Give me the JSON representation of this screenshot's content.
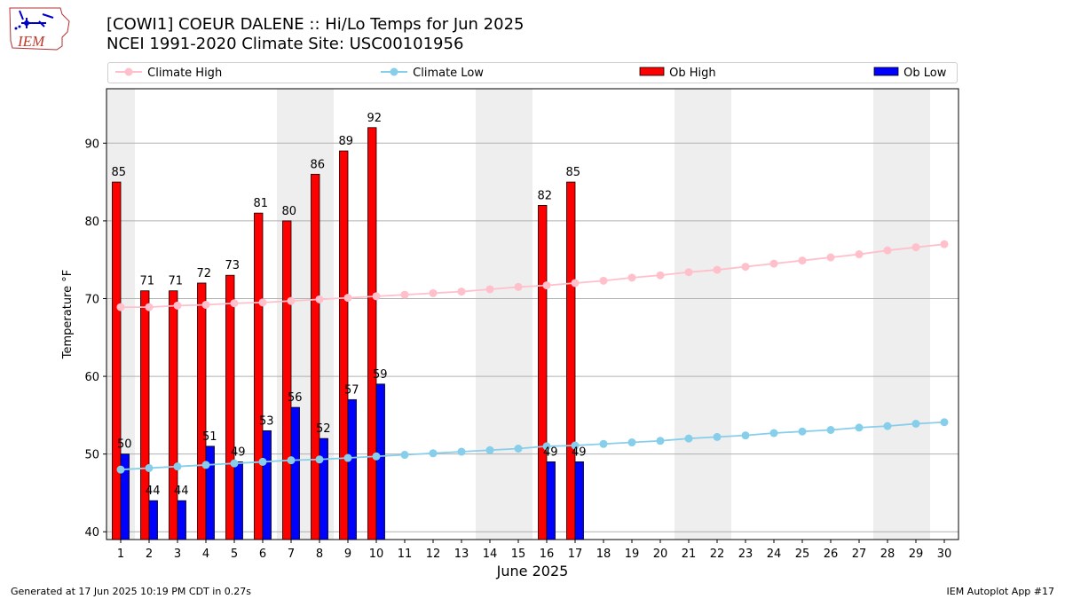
{
  "logo": {
    "text": "IEM"
  },
  "title": {
    "line1": "[COWI1] COEUR DALENE :: Hi/Lo Temps for Jun 2025",
    "line2": "NCEI 1991-2020 Climate Site: USC00101956"
  },
  "legend": {
    "climate_high": "Climate High",
    "climate_low": "Climate Low",
    "ob_high": "Ob High",
    "ob_low": "Ob Low"
  },
  "footer": {
    "left": "Generated at 17 Jun 2025 10:19 PM CDT in 0.27s",
    "right": "IEM Autoplot App #17"
  },
  "colors": {
    "ob_high": "#ff0000",
    "ob_low": "#0000ff",
    "climate_high": "#ffc0cb",
    "climate_low": "#87ceeb",
    "weekend_band": "#eeeeee",
    "grid": "#b0b0b0"
  },
  "chart_data": {
    "type": "bar",
    "title": "[COWI1] COEUR DALENE :: Hi/Lo Temps for Jun 2025",
    "subtitle": "NCEI 1991-2020 Climate Site: USC00101956",
    "xlabel": "June 2025",
    "ylabel": "Temperature °F",
    "ylim": [
      39,
      97
    ],
    "yticks": [
      40,
      50,
      60,
      70,
      80,
      90
    ],
    "grid": "y",
    "legend": "top, single row",
    "x": [
      1,
      2,
      3,
      4,
      5,
      6,
      7,
      8,
      9,
      10,
      11,
      12,
      13,
      14,
      15,
      16,
      17,
      18,
      19,
      20,
      21,
      22,
      23,
      24,
      25,
      26,
      27,
      28,
      29,
      30
    ],
    "weekend_bands": [
      [
        1,
        1
      ],
      [
        7,
        8
      ],
      [
        14,
        15
      ],
      [
        21,
        22
      ],
      [
        28,
        29
      ]
    ],
    "series": [
      {
        "name": "Ob High",
        "kind": "bar",
        "values": [
          85,
          71,
          71,
          72,
          73,
          81,
          80,
          86,
          89,
          92,
          null,
          null,
          null,
          null,
          null,
          82,
          85,
          null,
          null,
          null,
          null,
          null,
          null,
          null,
          null,
          null,
          null,
          null,
          null,
          null
        ]
      },
      {
        "name": "Ob Low",
        "kind": "bar",
        "values": [
          50,
          44,
          44,
          51,
          49,
          53,
          56,
          52,
          57,
          59,
          null,
          null,
          null,
          null,
          null,
          49,
          49,
          null,
          null,
          null,
          null,
          null,
          null,
          null,
          null,
          null,
          null,
          null,
          null,
          null
        ]
      },
      {
        "name": "Climate High",
        "kind": "line",
        "values": [
          68.9,
          68.9,
          69.1,
          69.2,
          69.4,
          69.5,
          69.7,
          69.9,
          70.1,
          70.3,
          70.5,
          70.7,
          70.9,
          71.2,
          71.5,
          71.7,
          72.0,
          72.3,
          72.7,
          73.0,
          73.4,
          73.7,
          74.1,
          74.5,
          74.9,
          75.3,
          75.7,
          76.2,
          76.6,
          77.0
        ]
      },
      {
        "name": "Climate Low",
        "kind": "line",
        "values": [
          48.0,
          48.2,
          48.4,
          48.6,
          48.8,
          49.0,
          49.2,
          49.3,
          49.5,
          49.7,
          49.9,
          50.1,
          50.3,
          50.5,
          50.7,
          51.0,
          51.1,
          51.3,
          51.5,
          51.7,
          52.0,
          52.2,
          52.4,
          52.7,
          52.9,
          53.1,
          53.4,
          53.6,
          53.9,
          54.1
        ]
      }
    ]
  }
}
